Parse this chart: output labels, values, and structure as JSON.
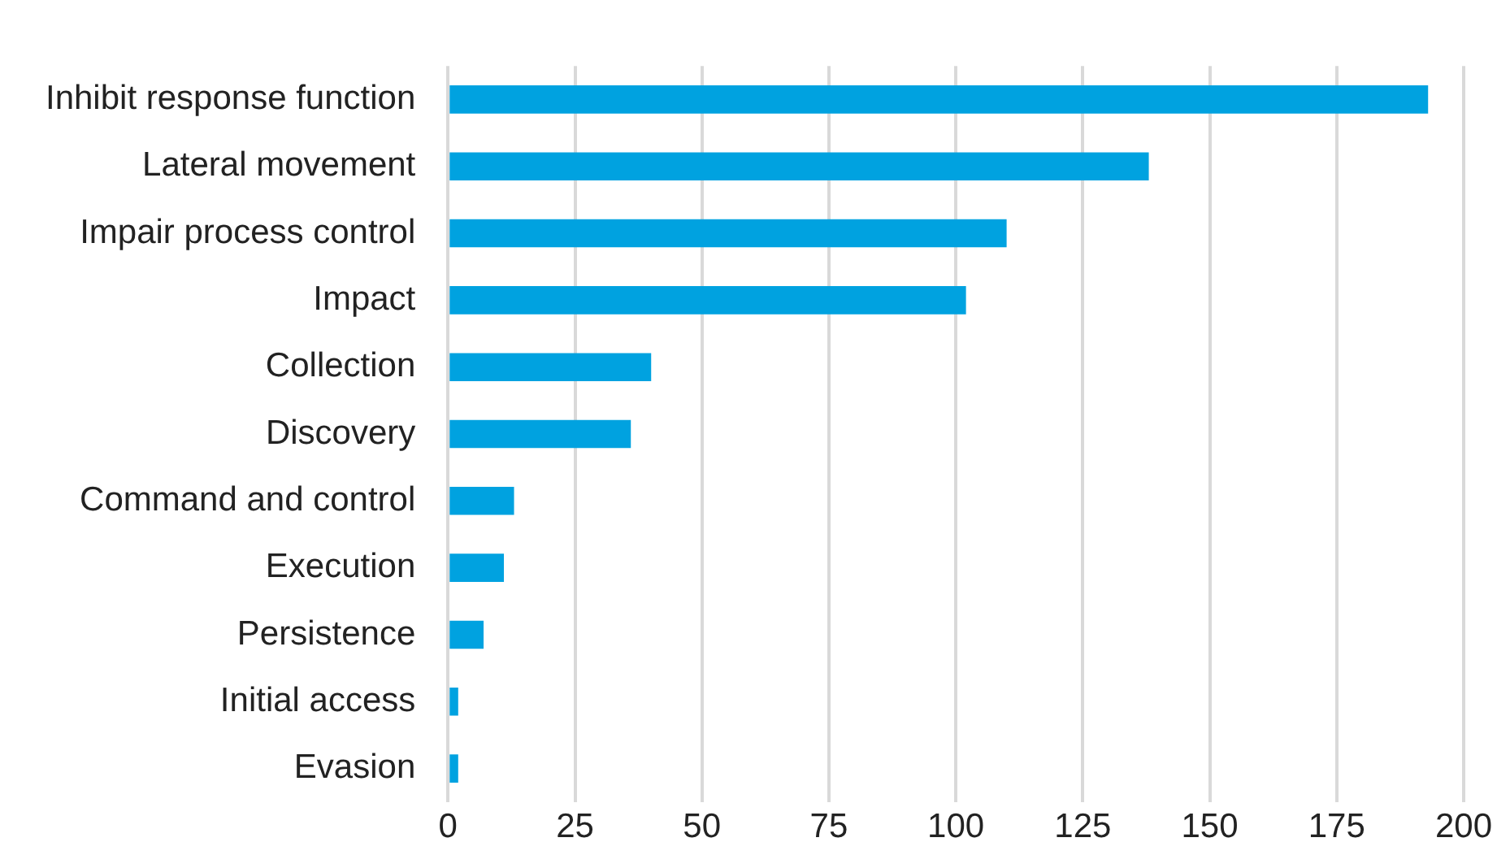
{
  "chart_data": {
    "type": "bar",
    "orientation": "horizontal",
    "categories": [
      "Inhibit response function",
      "Lateral movement",
      "Impair process control",
      "Impact",
      "Collection",
      "Discovery",
      "Command and control",
      "Execution",
      "Persistence",
      "Initial access",
      "Evasion"
    ],
    "values": [
      193,
      138,
      110,
      102,
      40,
      36,
      13,
      11,
      7,
      2,
      2
    ],
    "color": "#00a2e0",
    "xlim": [
      0,
      200
    ],
    "xticks": [
      0,
      25,
      50,
      75,
      100,
      125,
      150,
      175,
      200
    ],
    "grid": "x",
    "legend": false
  }
}
